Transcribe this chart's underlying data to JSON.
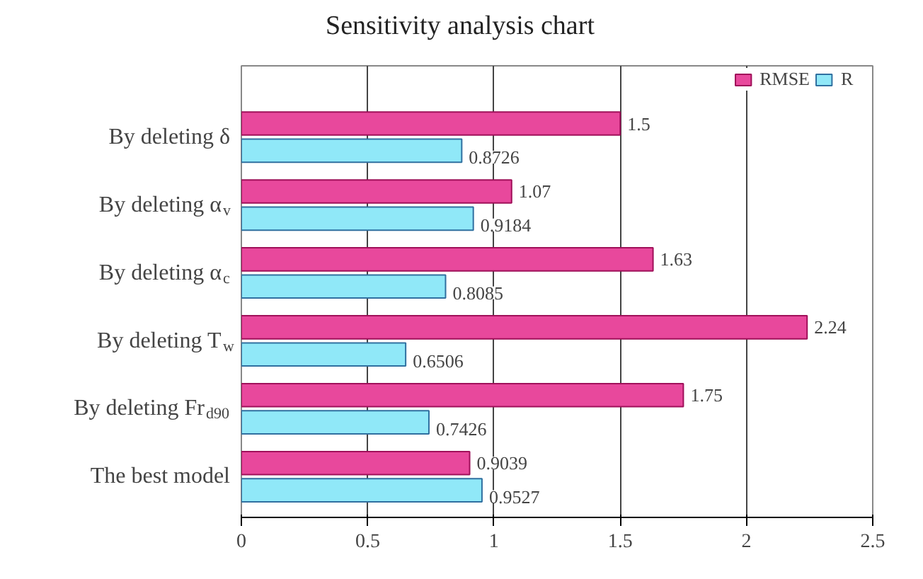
{
  "chart_data": {
    "type": "bar",
    "orientation": "horizontal",
    "title": "Sensitivity analysis chart",
    "categories": [
      "By deleting δ",
      "By deleting α$_{v}$",
      "By deleting α$_{c}$",
      "By deleting T$_{w}$",
      "By deleting Fr$_{d90}$",
      "The best model"
    ],
    "series": [
      {
        "name": "RMSE",
        "color": "#e8489c",
        "values": [
          1.5,
          1.07,
          1.63,
          2.24,
          1.75,
          0.9039
        ]
      },
      {
        "name": "R",
        "color": "#90e8f8",
        "values": [
          0.8726,
          0.9184,
          0.8085,
          0.6506,
          0.7426,
          0.9527
        ]
      }
    ],
    "xlim": [
      0,
      2.5
    ],
    "xticks": [
      0,
      0.5,
      1,
      1.5,
      2,
      2.5
    ],
    "grid": "x",
    "legend": "top right",
    "data_labels": true
  }
}
